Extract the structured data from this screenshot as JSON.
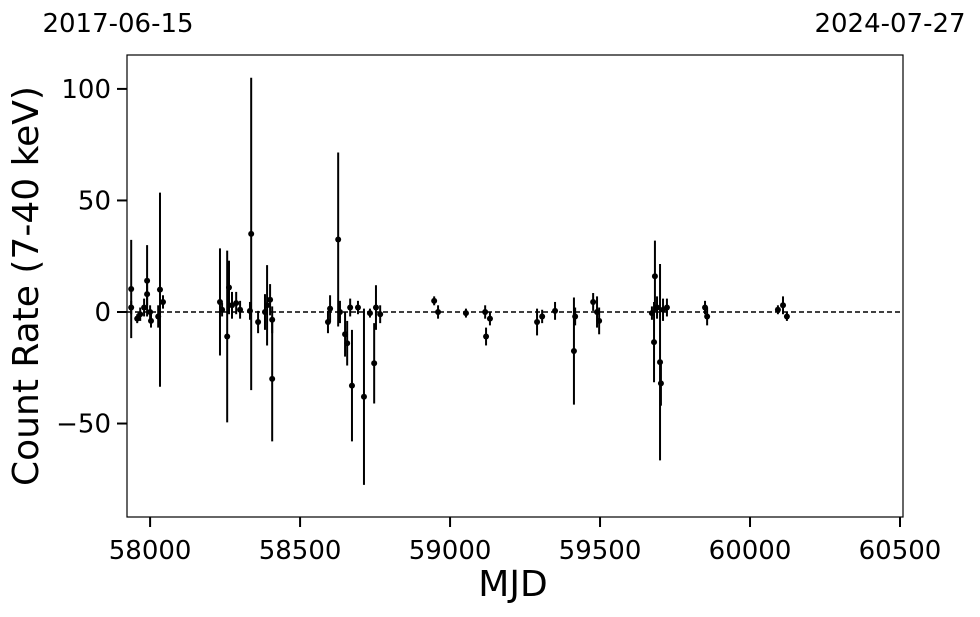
{
  "chart_data": {
    "type": "errorbar-scatter",
    "xlabel": "MJD",
    "ylabel": "Count Rate (7-40 keV)",
    "corner_labels": [
      "2017-06-15",
      "2024-07-27"
    ],
    "color": "#000000",
    "hline": 0,
    "xlim": [
      57923,
      60510
    ],
    "ylim": [
      -91.9,
      115.2
    ],
    "xticks": [
      58000,
      58500,
      59000,
      59500,
      60000,
      60500
    ],
    "yticks": [
      {
        "value": -50,
        "label": "−50"
      },
      0,
      50,
      100
    ],
    "x": [
      57937,
      57937,
      57957,
      57967,
      57980,
      57990,
      57990,
      58000,
      58003,
      58027,
      58033,
      58043,
      58233,
      58240,
      58257,
      58263,
      58273,
      58287,
      58300,
      58337,
      58333,
      58360,
      58383,
      58390,
      58400,
      58407,
      58407,
      58593,
      58600,
      58627,
      58633,
      58650,
      58657,
      58667,
      58673,
      58693,
      58713,
      58733,
      58747,
      58753,
      58767,
      58947,
      58960,
      59053,
      59117,
      59120,
      59133,
      59290,
      59307,
      59350,
      59413,
      59417,
      59477,
      59490,
      59497,
      59673,
      59680,
      59683,
      59690,
      59700,
      59703,
      59710,
      59723,
      59850,
      59857,
      60093,
      60110,
      60123
    ],
    "values": [
      10.3,
      2,
      -3,
      -1,
      2,
      14,
      8,
      0,
      -4,
      -2,
      10,
      4.5,
      4.5,
      1,
      -11,
      11,
      3,
      4,
      1,
      35,
      0.5,
      -4.5,
      0,
      3,
      5.5,
      -30,
      -3.5,
      -4.5,
      1.5,
      32.5,
      0,
      -10,
      -14,
      2,
      -33,
      2,
      -38,
      -0.5,
      -23,
      2,
      -1,
      5,
      0,
      -0.5,
      0,
      -11,
      -3,
      -4.5,
      -2,
      0.5,
      -17.5,
      -2,
      4.5,
      0,
      -4,
      -0.5,
      -13.5,
      16,
      2,
      -22.5,
      -32,
      1,
      2,
      2,
      -2,
      1,
      3,
      -2
    ],
    "errors": [
      22,
      3,
      2,
      3,
      4,
      16,
      5,
      3,
      3,
      5,
      43.5,
      3,
      24,
      3,
      38.5,
      12,
      6,
      5,
      4,
      70,
      4,
      5,
      8,
      18,
      7,
      28,
      6,
      5,
      6,
      39,
      5,
      10,
      10,
      4,
      25,
      3,
      39.5,
      2,
      18,
      10,
      4,
      2,
      3,
      2,
      3,
      4,
      3,
      6,
      3,
      4,
      24,
      4,
      4,
      7,
      6,
      3,
      18,
      16,
      5,
      44,
      10,
      5,
      4,
      3,
      4,
      2,
      4,
      2
    ]
  }
}
